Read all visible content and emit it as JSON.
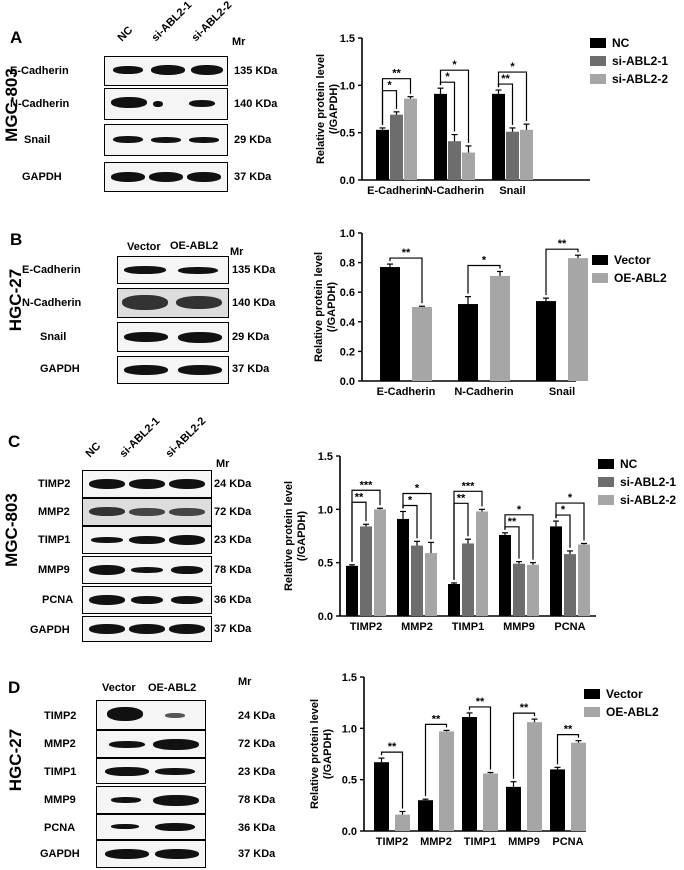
{
  "panels": [
    {
      "letter": "A",
      "cell_line": "MGC-803",
      "lanes": [
        "NC",
        "si-ABL2-1",
        "si-ABL2-2"
      ],
      "mr": "Mr",
      "blots": [
        {
          "name": "E-Cadherin",
          "kda": "135 KDa"
        },
        {
          "name": "N-Cadherin",
          "kda": "140 KDa"
        },
        {
          "name": "Snail",
          "kda": "29 KDa"
        },
        {
          "name": "GAPDH",
          "kda": "37 KDa"
        }
      ]
    },
    {
      "letter": "B",
      "cell_line": "HGC-27",
      "lanes": [
        "Vector",
        "OE-ABL2"
      ],
      "mr": "Mr",
      "blots": [
        {
          "name": "E-Cadherin",
          "kda": "135 KDa"
        },
        {
          "name": "N-Cadherin",
          "kda": "140 KDa"
        },
        {
          "name": "Snail",
          "kda": "29 KDa"
        },
        {
          "name": "GAPDH",
          "kda": "37 KDa"
        }
      ]
    },
    {
      "letter": "C",
      "cell_line": "MGC-803",
      "lanes": [
        "NC",
        "si-ABL2-1",
        "si-ABL2-2"
      ],
      "mr": "Mr",
      "blots": [
        {
          "name": "TIMP2",
          "kda": "24 KDa"
        },
        {
          "name": "MMP2",
          "kda": "72 KDa"
        },
        {
          "name": "TIMP1",
          "kda": "23 KDa"
        },
        {
          "name": "MMP9",
          "kda": "78 KDa"
        },
        {
          "name": "PCNA",
          "kda": "36 KDa"
        },
        {
          "name": "GAPDH",
          "kda": "37 KDa"
        }
      ]
    },
    {
      "letter": "D",
      "cell_line": "HGC-27",
      "lanes": [
        "Vector",
        "OE-ABL2"
      ],
      "mr": "Mr",
      "blots": [
        {
          "name": "TIMP2",
          "kda": "24 KDa"
        },
        {
          "name": "MMP2",
          "kda": "72 KDa"
        },
        {
          "name": "TIMP1",
          "kda": "23 KDa"
        },
        {
          "name": "MMP9",
          "kda": "78 KDa"
        },
        {
          "name": "PCNA",
          "kda": "36 KDa"
        },
        {
          "name": "GAPDH",
          "kda": "37 KDa"
        }
      ]
    }
  ],
  "chart_data": [
    {
      "type": "bar",
      "ylabel": "Relative protein level\n(/GAPDH)",
      "ylim": [
        0,
        1.5
      ],
      "yticks": [
        "0.0",
        "0.5",
        "1.0",
        "1.5"
      ],
      "categories": [
        "E-Cadherin",
        "N-Cadherin",
        "Snail"
      ],
      "series": [
        {
          "name": "NC",
          "values": [
            0.53,
            0.91,
            0.91
          ],
          "errors": [
            0.02,
            0.06,
            0.04
          ],
          "color": "#000000"
        },
        {
          "name": "si-ABL2-1",
          "values": [
            0.69,
            0.41,
            0.51
          ],
          "errors": [
            0.03,
            0.07,
            0.04
          ],
          "color": "#6d6d6d"
        },
        {
          "name": "si-ABL2-2",
          "values": [
            0.86,
            0.29,
            0.53
          ],
          "errors": [
            0.02,
            0.07,
            0.06
          ],
          "color": "#a6a6a6"
        }
      ],
      "significance": [
        {
          "cat": 0,
          "from": 0,
          "to": 1,
          "label": "*"
        },
        {
          "cat": 0,
          "from": 0,
          "to": 2,
          "label": "**"
        },
        {
          "cat": 1,
          "from": 0,
          "to": 1,
          "label": "*"
        },
        {
          "cat": 1,
          "from": 0,
          "to": 2,
          "label": "*"
        },
        {
          "cat": 2,
          "from": 0,
          "to": 1,
          "label": "**"
        },
        {
          "cat": 2,
          "from": 0,
          "to": 2,
          "label": "*"
        }
      ],
      "legend": "top-right"
    },
    {
      "type": "bar",
      "ylabel": "Relative protein level\n(/GAPDH)",
      "ylim": [
        0,
        1.0
      ],
      "yticks": [
        "0.0",
        "0.2",
        "0.4",
        "0.6",
        "0.8",
        "1.0"
      ],
      "categories": [
        "E-Cadherin",
        "N-Cadherin",
        "Snail"
      ],
      "series": [
        {
          "name": "Vector",
          "values": [
            0.77,
            0.52,
            0.54
          ],
          "errors": [
            0.02,
            0.05,
            0.02
          ],
          "color": "#000000"
        },
        {
          "name": "OE-ABL2",
          "values": [
            0.5,
            0.71,
            0.83
          ],
          "errors": [
            0.005,
            0.03,
            0.02
          ],
          "color": "#a6a6a6"
        }
      ],
      "significance": [
        {
          "cat": 0,
          "from": 0,
          "to": 1,
          "label": "**"
        },
        {
          "cat": 1,
          "from": 0,
          "to": 1,
          "label": "*"
        },
        {
          "cat": 2,
          "from": 0,
          "to": 1,
          "label": "**"
        }
      ],
      "legend": "top-right"
    },
    {
      "type": "bar",
      "ylabel": "Relative protein level\n(/GAPDH)",
      "ylim": [
        0,
        1.5
      ],
      "yticks": [
        "0.0",
        "0.5",
        "1.0",
        "1.5"
      ],
      "categories": [
        "TIMP2",
        "MMP2",
        "TIMP1",
        "MMP9",
        "PCNA"
      ],
      "series": [
        {
          "name": "NC",
          "values": [
            0.47,
            0.91,
            0.3,
            0.76,
            0.84
          ],
          "errors": [
            0.01,
            0.07,
            0.01,
            0.02,
            0.05
          ],
          "color": "#000000"
        },
        {
          "name": "si-ABL2-1",
          "values": [
            0.84,
            0.66,
            0.68,
            0.49,
            0.58
          ],
          "errors": [
            0.02,
            0.04,
            0.04,
            0.02,
            0.03
          ],
          "color": "#6d6d6d"
        },
        {
          "name": "si-ABL2-2",
          "values": [
            1.0,
            0.59,
            0.98,
            0.48,
            0.67
          ],
          "errors": [
            0.01,
            0.1,
            0.02,
            0.02,
            0.01
          ],
          "color": "#a6a6a6"
        }
      ],
      "significance": [
        {
          "cat": 0,
          "from": 0,
          "to": 1,
          "label": "**"
        },
        {
          "cat": 0,
          "from": 0,
          "to": 2,
          "label": "***"
        },
        {
          "cat": 1,
          "from": 0,
          "to": 1,
          "label": "*"
        },
        {
          "cat": 1,
          "from": 0,
          "to": 2,
          "label": "*"
        },
        {
          "cat": 2,
          "from": 0,
          "to": 1,
          "label": "**"
        },
        {
          "cat": 2,
          "from": 0,
          "to": 2,
          "label": "***"
        },
        {
          "cat": 3,
          "from": 0,
          "to": 1,
          "label": "**"
        },
        {
          "cat": 3,
          "from": 0,
          "to": 2,
          "label": "*"
        },
        {
          "cat": 4,
          "from": 0,
          "to": 1,
          "label": "*"
        },
        {
          "cat": 4,
          "from": 0,
          "to": 2,
          "label": "*"
        }
      ],
      "legend": "top-right"
    },
    {
      "type": "bar",
      "ylabel": "Relative protein level\n(/GAPDH)",
      "ylim": [
        0,
        1.5
      ],
      "yticks": [
        "0.0",
        "0.5",
        "1.0",
        "1.5"
      ],
      "categories": [
        "TIMP2",
        "MMP2",
        "TIMP1",
        "MMP9",
        "PCNA"
      ],
      "series": [
        {
          "name": "Vector",
          "values": [
            0.67,
            0.3,
            1.11,
            0.43,
            0.6
          ],
          "errors": [
            0.04,
            0.01,
            0.04,
            0.05,
            0.02
          ],
          "color": "#000000"
        },
        {
          "name": "OE-ABL2",
          "values": [
            0.16,
            0.97,
            0.56,
            1.06,
            0.86
          ],
          "errors": [
            0.03,
            0.01,
            0.01,
            0.03,
            0.02
          ],
          "color": "#a6a6a6"
        }
      ],
      "significance": [
        {
          "cat": 0,
          "from": 0,
          "to": 1,
          "label": "**"
        },
        {
          "cat": 1,
          "from": 0,
          "to": 1,
          "label": "**"
        },
        {
          "cat": 2,
          "from": 0,
          "to": 1,
          "label": "**"
        },
        {
          "cat": 3,
          "from": 0,
          "to": 1,
          "label": "**"
        },
        {
          "cat": 4,
          "from": 0,
          "to": 1,
          "label": "**"
        }
      ],
      "legend": "top-right"
    }
  ]
}
